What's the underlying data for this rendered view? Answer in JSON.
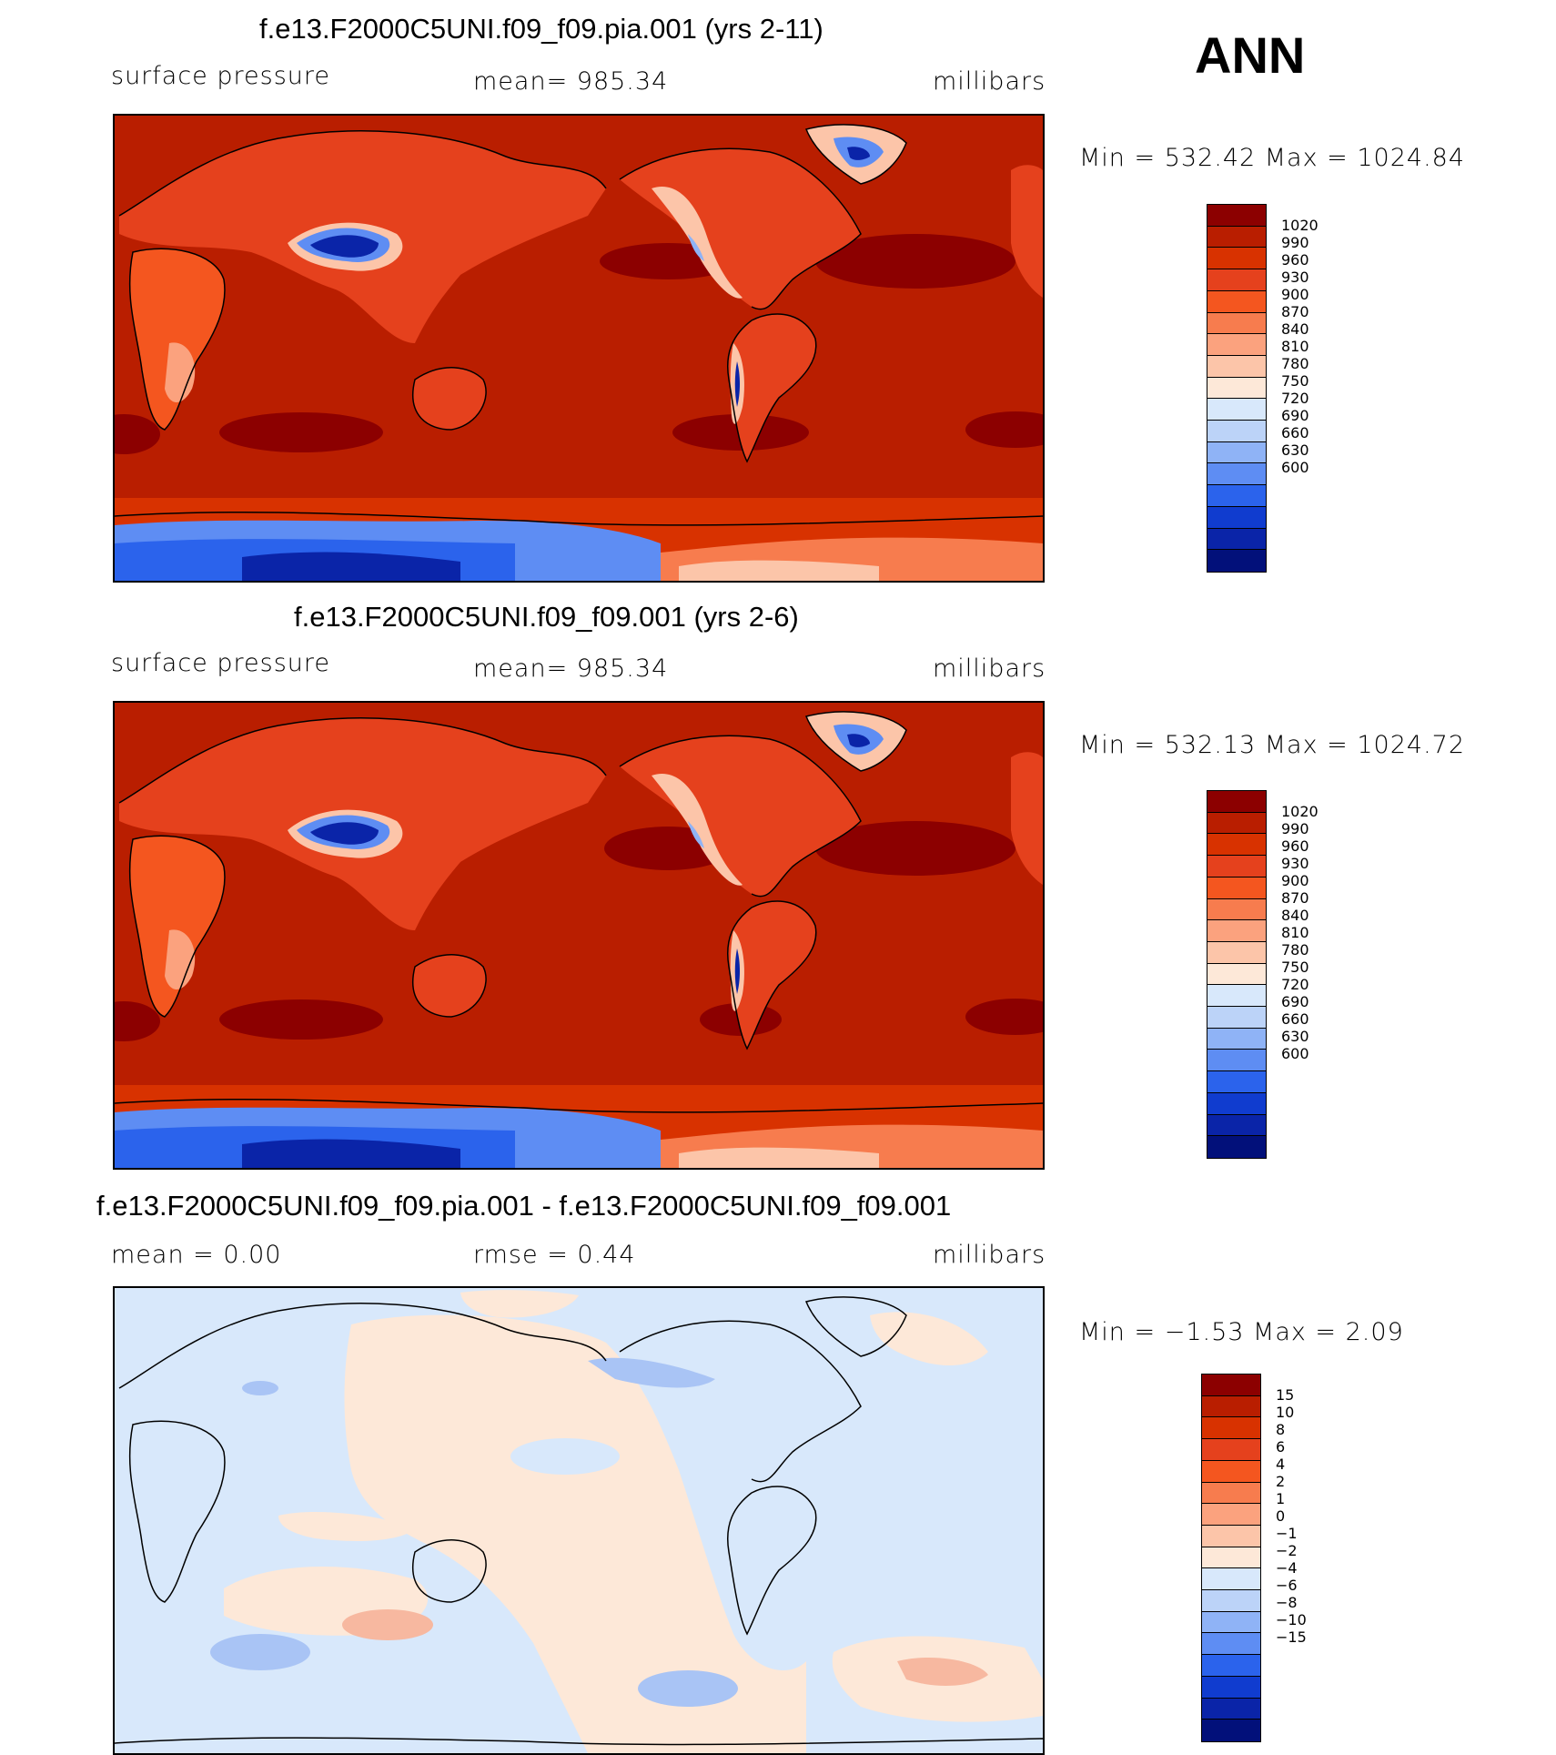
{
  "season": "ANN",
  "panels": [
    {
      "title": "f.e13.F2000C5UNI.f09_f09.pia.001 (yrs 2-11)",
      "left_label": "surface pressure",
      "center_label": "mean=  985.34",
      "units": "millibars",
      "stats": "Min  =  532.42  Max  =  1024.84",
      "colorbar_levels": [
        "1020",
        "990",
        "960",
        "930",
        "900",
        "870",
        "840",
        "810",
        "780",
        "750",
        "720",
        "690",
        "660",
        "630",
        "600"
      ],
      "colors": {
        "land": "#e5411d",
        "ocean": "#b91e00",
        "high": "#8c0000",
        "plateau": "#0a2ab4",
        "south_band": "#d83200"
      }
    },
    {
      "title": "f.e13.F2000C5UNI.f09_f09.001 (yrs 2-6)",
      "left_label": "surface pressure",
      "center_label": "mean=  985.34",
      "units": "millibars",
      "stats": "Min  =  532.13  Max  =  1024.72",
      "colorbar_levels": [
        "1020",
        "990",
        "960",
        "930",
        "900",
        "870",
        "840",
        "810",
        "780",
        "750",
        "720",
        "690",
        "660",
        "630",
        "600"
      ],
      "colors": {
        "land": "#e5411d",
        "ocean": "#b91e00",
        "high": "#8c0000",
        "plateau": "#0a2ab4",
        "south_band": "#d83200"
      }
    },
    {
      "title": "f.e13.F2000C5UNI.f09_f09.pia.001 - f.e13.F2000C5UNI.f09_f09.001",
      "left_label": "mean  =      0.00",
      "center_label": "rmse  =      0.44",
      "units": "millibars",
      "stats": "Min  =    −1.53  Max  =      2.09",
      "colorbar_levels": [
        "15",
        "10",
        "8",
        "6",
        "4",
        "2",
        "1",
        "0",
        "−1",
        "−2",
        "−4",
        "−6",
        "−8",
        "−10",
        "−15"
      ],
      "colors": {
        "pos": "#fde8d8",
        "neg": "#d8e8fb",
        "pos_mid": "#f7b8a0",
        "neg_mid": "#a9c4f5"
      }
    }
  ],
  "colorbar_colors_abs": [
    "#8c0000",
    "#b91e00",
    "#d83200",
    "#e5411d",
    "#f4561f",
    "#f77c4e",
    "#fba27e",
    "#fcc5a9",
    "#fde8d8",
    "#d8e8fb",
    "#bcd3f8",
    "#8fb3f6",
    "#5e8df3",
    "#2b63ec",
    "#103ccf",
    "#0a24a8",
    "#02107a"
  ],
  "colorbar_colors_diff": [
    "#8c0000",
    "#b91e00",
    "#d83200",
    "#e5411d",
    "#f4561f",
    "#f77c4e",
    "#fba27e",
    "#fcc5a9",
    "#fde8d8",
    "#d8e8fb",
    "#bcd3f8",
    "#8fb3f6",
    "#5e8df3",
    "#2b63ec",
    "#103ccf",
    "#0a24a8",
    "#02107a"
  ]
}
